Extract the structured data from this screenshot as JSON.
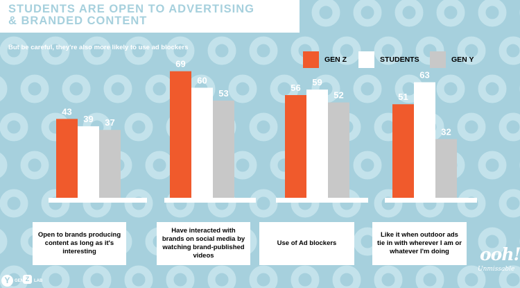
{
  "title_line1": "STUDENTS ARE OPEN TO ADVERTISING",
  "title_line2": "& BRANDED CONTENT",
  "subtitle": "But be careful, they're also more likely to use ad blockers",
  "colors": {
    "background": "#a6d0dd",
    "donut": "#c3e2eb",
    "gen_z": "#f05a2c",
    "students": "#ffffff",
    "gen_y": "#c8c8c8",
    "base": "#ffffff"
  },
  "brand": {
    "logo": "ooh!",
    "tagline": "Unmissable"
  },
  "genz_logo": {
    "mark": "Y",
    "gen": "GEN",
    "z": "Z",
    "lab": "LAB"
  },
  "chart_data": {
    "type": "bar",
    "title": "STUDENTS ARE OPEN TO ADVERTISING & BRANDED CONTENT",
    "subtitle": "But be careful, they're also more likely to use ad blockers",
    "categories": [
      "Open to brands producing content as long as it's interesting",
      "Have interacted with brands on social media by watching brand-published videos",
      "Use of Ad blockers",
      "Like it when outdoor ads tie in with wherever I am or whatever I'm doing"
    ],
    "series": [
      {
        "name": "GEN Z",
        "values": [
          43,
          69,
          56,
          51
        ]
      },
      {
        "name": "STUDENTS",
        "values": [
          39,
          60,
          59,
          63
        ]
      },
      {
        "name": "GEN Y",
        "values": [
          37,
          53,
          52,
          32
        ]
      }
    ],
    "ylim": [
      0,
      70
    ],
    "legend": "top-right",
    "grid": false,
    "data_labels": true
  }
}
